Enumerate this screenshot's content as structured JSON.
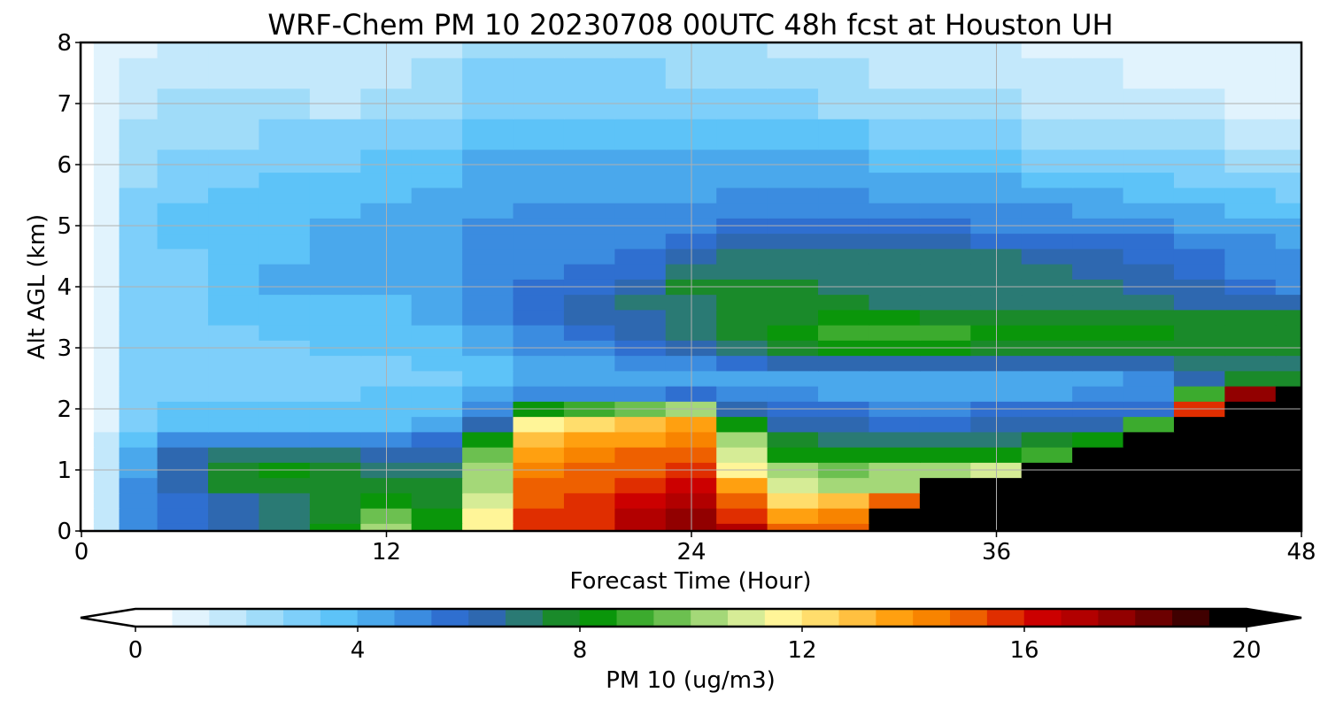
{
  "chart_data": {
    "type": "heatmap",
    "title": "WRF-Chem PM 10  20230708 00UTC 48h fcst at Houston UH",
    "xlabel": "Forecast Time (Hour)",
    "ylabel": "Alt AGL (km)",
    "xlim": [
      0,
      48
    ],
    "ylim": [
      0,
      8
    ],
    "xticks": [
      "0",
      "12",
      "24",
      "36",
      "48"
    ],
    "yticks": [
      "0",
      "1",
      "2",
      "3",
      "4",
      "5",
      "6",
      "7",
      "8"
    ],
    "grid": true,
    "colorbar": {
      "label": "PM 10  (ug/m3)",
      "range": [
        0,
        20
      ],
      "ticks": [
        "0",
        "4",
        "8",
        "12",
        "16",
        "20"
      ],
      "extend": "both",
      "colors": [
        "#ffffff",
        "#e1f3fd",
        "#c3e8fb",
        "#a0dcf9",
        "#7ecffa",
        "#5dc3f8",
        "#4aa8ec",
        "#3b8ce0",
        "#2f6fd0",
        "#2e68b0",
        "#2a7a74",
        "#1a8a2a",
        "#0a960a",
        "#3cab2e",
        "#6cc050",
        "#a4d878",
        "#d6ec96",
        "#fff598",
        "#ffdd6c",
        "#ffc040",
        "#ffa010",
        "#f88400",
        "#ee6000",
        "#e02e00",
        "#cc0000",
        "#b20000",
        "#920000",
        "#6c0000",
        "#400000",
        "#000000"
      ]
    },
    "x": [
      0,
      1,
      2,
      4,
      6,
      8,
      10,
      12,
      14,
      16,
      18,
      20,
      22,
      24,
      26,
      28,
      30,
      32,
      34,
      36,
      38,
      40,
      42,
      44,
      46,
      48
    ],
    "y": [
      0,
      0.25,
      0.5,
      0.75,
      1,
      1.25,
      1.5,
      1.75,
      2,
      2.25,
      2.5,
      2.75,
      3,
      3.25,
      3.5,
      3.75,
      4,
      4.25,
      4.5,
      4.75,
      5,
      5.25,
      5.5,
      5.75,
      6,
      6.5,
      7,
      7.5,
      8
    ],
    "values": [
      [
        0.2,
        1.5,
        5.0,
        5.8,
        6.5,
        7.0,
        8.0,
        10.5,
        8.5,
        12.0,
        16.0,
        16.0,
        17.0,
        18.0,
        17.0,
        15.0,
        15.0,
        20.0,
        20.0,
        20.0,
        20.0,
        20.0,
        20.0,
        20.0,
        20.0,
        20.0
      ],
      [
        0.2,
        1.5,
        5.0,
        5.8,
        6.5,
        7.0,
        7.6,
        9.5,
        8.0,
        11.5,
        15.8,
        16.0,
        17.0,
        17.8,
        16.0,
        14.0,
        14.5,
        20.0,
        20.0,
        20.0,
        20.0,
        20.0,
        20.0,
        20.0,
        20.0,
        20.0
      ],
      [
        0.2,
        1.5,
        4.8,
        5.8,
        6.2,
        7.2,
        7.4,
        8.0,
        7.8,
        11.0,
        15.5,
        15.8,
        16.5,
        17.0,
        15.0,
        12.5,
        13.0,
        15.0,
        20.0,
        20.0,
        20.0,
        20.0,
        20.0,
        20.0,
        20.0,
        20.0
      ],
      [
        0.2,
        1.4,
        4.6,
        6.2,
        7.3,
        7.6,
        7.3,
        7.6,
        7.4,
        10.5,
        15.0,
        15.5,
        16.0,
        16.5,
        13.5,
        11.0,
        10.5,
        10.5,
        20.0,
        20.0,
        20.0,
        20.0,
        20.0,
        20.0,
        20.0,
        20.0
      ],
      [
        0.2,
        1.3,
        4.2,
        6.5,
        7.6,
        8.0,
        7.6,
        7.2,
        7.0,
        10.0,
        14.5,
        15.0,
        15.5,
        16.0,
        12.0,
        10.0,
        9.5,
        10.0,
        10.5,
        11.0,
        20.0,
        20.0,
        20.0,
        20.0,
        20.0,
        20.0
      ],
      [
        0.2,
        1.2,
        3.8,
        6.2,
        7.2,
        7.2,
        7.2,
        6.5,
        6.5,
        9.5,
        14.0,
        14.5,
        15.0,
        15.5,
        11.0,
        8.5,
        8.0,
        8.0,
        8.5,
        8.5,
        9.0,
        20.0,
        20.0,
        20.0,
        20.0,
        20.0
      ],
      [
        0.2,
        1.1,
        3.5,
        4.5,
        4.6,
        4.5,
        4.5,
        4.5,
        5.5,
        8.5,
        13.0,
        13.5,
        14.0,
        14.5,
        10.0,
        7.5,
        7.2,
        7.0,
        7.0,
        7.2,
        7.5,
        8.0,
        20.0,
        20.0,
        20.0,
        20.0
      ],
      [
        0.2,
        1.0,
        3.0,
        3.5,
        3.5,
        3.5,
        3.5,
        3.6,
        4.2,
        6.0,
        11.5,
        12.5,
        13.0,
        13.5,
        8.5,
        6.5,
        6.0,
        5.8,
        5.8,
        6.0,
        6.0,
        6.2,
        9.0,
        20.0,
        20.0,
        20.0
      ],
      [
        0.2,
        1.0,
        2.8,
        3.2,
        3.2,
        3.3,
        3.3,
        3.4,
        3.6,
        4.5,
        8.0,
        9.0,
        9.5,
        10.0,
        6.5,
        5.5,
        5.2,
        5.0,
        5.0,
        5.2,
        5.2,
        5.3,
        5.5,
        16.0,
        20.0,
        20.0
      ],
      [
        0.2,
        1.0,
        2.6,
        3.0,
        3.0,
        3.1,
        3.1,
        3.2,
        3.3,
        3.8,
        4.5,
        4.8,
        5.0,
        5.5,
        4.8,
        4.5,
        4.4,
        4.3,
        4.3,
        4.4,
        4.4,
        4.5,
        4.8,
        9.0,
        18.0,
        20.0
      ],
      [
        0.2,
        1.0,
        2.6,
        2.8,
        2.9,
        3.0,
        3.0,
        3.0,
        3.1,
        3.4,
        3.8,
        4.0,
        4.0,
        4.2,
        4.0,
        3.9,
        3.8,
        3.8,
        3.8,
        3.9,
        4.0,
        4.2,
        5.0,
        6.0,
        7.5,
        7.8
      ],
      [
        0.2,
        1.0,
        2.6,
        2.8,
        2.9,
        3.0,
        3.1,
        3.1,
        3.2,
        3.5,
        4.0,
        4.2,
        4.5,
        4.8,
        5.5,
        6.0,
        6.0,
        6.0,
        6.0,
        6.0,
        6.0,
        6.2,
        6.5,
        6.8,
        7.0,
        7.0
      ],
      [
        0.2,
        1.0,
        2.7,
        2.9,
        3.0,
        3.1,
        3.2,
        3.2,
        3.4,
        3.8,
        4.5,
        5.0,
        5.5,
        6.0,
        7.0,
        7.8,
        8.0,
        8.0,
        8.0,
        7.8,
        7.8,
        7.8,
        7.6,
        7.5,
        7.5,
        7.5
      ],
      [
        0.2,
        1.0,
        2.8,
        3.0,
        3.1,
        3.2,
        3.3,
        3.4,
        3.6,
        4.2,
        5.0,
        5.5,
        6.2,
        6.8,
        7.5,
        8.3,
        9.0,
        9.0,
        8.8,
        8.5,
        8.3,
        8.2,
        8.0,
        7.8,
        7.7,
        7.6
      ],
      [
        0.2,
        1.0,
        2.8,
        3.0,
        3.2,
        3.3,
        3.4,
        3.5,
        3.8,
        4.5,
        5.5,
        6.0,
        6.5,
        7.0,
        7.6,
        7.9,
        8.1,
        8.0,
        7.9,
        7.8,
        7.8,
        7.8,
        7.7,
        7.6,
        7.5,
        7.4
      ],
      [
        0.2,
        1.0,
        2.8,
        3.0,
        3.3,
        3.5,
        3.6,
        3.7,
        4.0,
        4.6,
        5.5,
        6.0,
        6.6,
        7.2,
        7.6,
        7.4,
        7.3,
        7.2,
        7.1,
        7.1,
        7.1,
        7.0,
        6.8,
        6.5,
        6.2,
        6.0
      ],
      [
        0.2,
        1.0,
        2.8,
        3.0,
        3.6,
        3.9,
        4.4,
        4.0,
        4.2,
        4.6,
        5.2,
        5.6,
        6.0,
        7.5,
        7.6,
        7.3,
        7.1,
        7.0,
        7.0,
        7.0,
        7.0,
        7.0,
        6.5,
        6.0,
        5.5,
        5.0
      ],
      [
        0.2,
        1.0,
        2.8,
        3.0,
        3.6,
        3.8,
        4.0,
        3.9,
        4.2,
        4.6,
        5.0,
        5.2,
        5.5,
        6.8,
        7.2,
        7.0,
        6.8,
        6.8,
        6.8,
        6.8,
        6.8,
        6.5,
        6.0,
        5.5,
        5.0,
        4.8
      ],
      [
        0.2,
        1.0,
        2.8,
        3.1,
        3.4,
        3.6,
        3.8,
        3.8,
        4.0,
        4.5,
        4.8,
        5.0,
        5.2,
        6.0,
        6.8,
        6.8,
        6.8,
        6.8,
        6.8,
        6.6,
        6.4,
        6.0,
        5.6,
        5.2,
        4.8,
        4.6
      ],
      [
        0.2,
        1.0,
        2.8,
        3.2,
        3.5,
        3.7,
        3.9,
        4.0,
        4.2,
        4.6,
        4.8,
        5.0,
        5.0,
        5.5,
        6.0,
        6.2,
        6.2,
        6.2,
        6.0,
        5.8,
        5.6,
        5.4,
        5.2,
        5.0,
        4.6,
        4.4
      ],
      [
        0.2,
        1.0,
        2.8,
        3.2,
        3.4,
        3.6,
        3.8,
        3.9,
        4.1,
        4.5,
        4.6,
        4.7,
        4.8,
        5.0,
        5.2,
        5.4,
        5.4,
        5.4,
        5.3,
        5.1,
        5.0,
        4.8,
        4.6,
        4.4,
        4.2,
        4.0
      ],
      [
        0.2,
        1.0,
        2.8,
        3.2,
        3.4,
        3.6,
        3.7,
        3.8,
        4.0,
        4.4,
        4.5,
        4.6,
        4.6,
        4.7,
        4.8,
        4.9,
        4.9,
        4.9,
        4.8,
        4.7,
        4.5,
        4.3,
        4.1,
        3.9,
        3.7,
        3.5
      ],
      [
        0.2,
        1.0,
        2.6,
        3.0,
        3.2,
        3.4,
        3.5,
        3.6,
        3.8,
        4.2,
        4.3,
        4.4,
        4.4,
        4.4,
        4.5,
        4.5,
        4.5,
        4.4,
        4.3,
        4.2,
        4.0,
        3.8,
        3.6,
        3.4,
        3.2,
        3.0
      ],
      [
        0.2,
        0.9,
        2.4,
        2.8,
        3.0,
        3.2,
        3.3,
        3.4,
        3.6,
        4.0,
        4.1,
        4.2,
        4.2,
        4.2,
        4.2,
        4.2,
        4.1,
        4.0,
        3.9,
        3.8,
        3.6,
        3.4,
        3.2,
        3.0,
        2.8,
        2.6
      ],
      [
        0.2,
        0.8,
        2.2,
        2.6,
        2.8,
        3.0,
        3.1,
        3.2,
        3.4,
        3.8,
        3.9,
        4.0,
        4.0,
        4.0,
        4.0,
        3.9,
        3.8,
        3.7,
        3.5,
        3.3,
        3.1,
        2.9,
        2.7,
        2.5,
        2.3,
        2.1
      ],
      [
        0.2,
        0.7,
        1.8,
        2.2,
        2.4,
        2.6,
        2.8,
        2.9,
        3.0,
        3.4,
        3.5,
        3.6,
        3.6,
        3.5,
        3.4,
        3.3,
        3.2,
        3.0,
        2.8,
        2.6,
        2.4,
        2.2,
        2.0,
        1.8,
        1.6,
        1.4
      ],
      [
        0.2,
        0.6,
        1.4,
        1.8,
        2.0,
        1.8,
        1.6,
        2.0,
        2.4,
        3.0,
        3.0,
        3.0,
        3.0,
        2.9,
        2.8,
        2.6,
        2.4,
        2.2,
        2.0,
        1.8,
        1.6,
        1.5,
        1.4,
        1.2,
        1.0,
        0.9
      ],
      [
        0.2,
        0.5,
        1.2,
        1.4,
        1.6,
        1.4,
        1.3,
        1.6,
        2.0,
        2.6,
        2.6,
        2.6,
        2.5,
        2.4,
        2.3,
        2.1,
        1.9,
        1.7,
        1.5,
        1.3,
        1.2,
        1.1,
        1.0,
        0.9,
        0.8,
        0.7
      ],
      [
        0.2,
        0.4,
        1.0,
        1.2,
        1.3,
        1.2,
        1.1,
        1.3,
        1.6,
        2.2,
        2.2,
        2.2,
        2.1,
        2.0,
        1.9,
        1.7,
        1.5,
        1.4,
        1.2,
        1.1,
        1.0,
        0.9,
        0.8,
        0.7,
        0.6,
        0.5
      ]
    ]
  }
}
